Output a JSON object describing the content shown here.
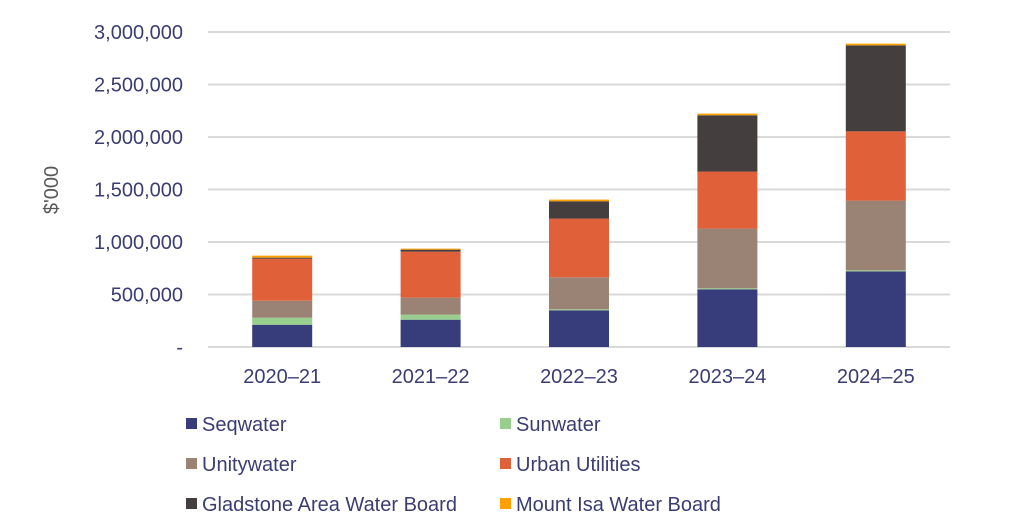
{
  "chart_data": {
    "type": "bar",
    "stacked": true,
    "title": "",
    "xlabel": "",
    "ylabel": "$'000",
    "ylim": [
      0,
      3000000
    ],
    "yticks": [
      0,
      500000,
      1000000,
      1500000,
      2000000,
      2500000,
      3000000
    ],
    "ytick_labels": [
      "-",
      "500,000",
      "1,000,000",
      "1,500,000",
      "2,000,000",
      "2,500,000",
      "3,000,000"
    ],
    "grid": true,
    "legend_position": "bottom",
    "categories": [
      "2020–21",
      "2021–22",
      "2022–23",
      "2023–24",
      "2024–25"
    ],
    "series": [
      {
        "name": "Seqwater",
        "color": "#363d7a",
        "values": [
          212000,
          260000,
          349000,
          549000,
          720000
        ]
      },
      {
        "name": "Sunwater",
        "color": "#98cf8e",
        "values": [
          67000,
          48000,
          10000,
          10000,
          10000
        ]
      },
      {
        "name": "Unitywater",
        "color": "#9a8374",
        "values": [
          162000,
          162000,
          305000,
          569000,
          664000
        ]
      },
      {
        "name": "Urban Utilities",
        "color": "#e0603a",
        "values": [
          400000,
          438000,
          559000,
          543000,
          660000
        ]
      },
      {
        "name": "Gladstone Area Water Board",
        "color": "#443e3e",
        "values": [
          10000,
          19000,
          165000,
          536000,
          819000
        ]
      },
      {
        "name": "Mount Isa Water Board",
        "color": "#ffa000",
        "values": [
          19000,
          10000,
          16000,
          16000,
          16000
        ]
      }
    ]
  }
}
